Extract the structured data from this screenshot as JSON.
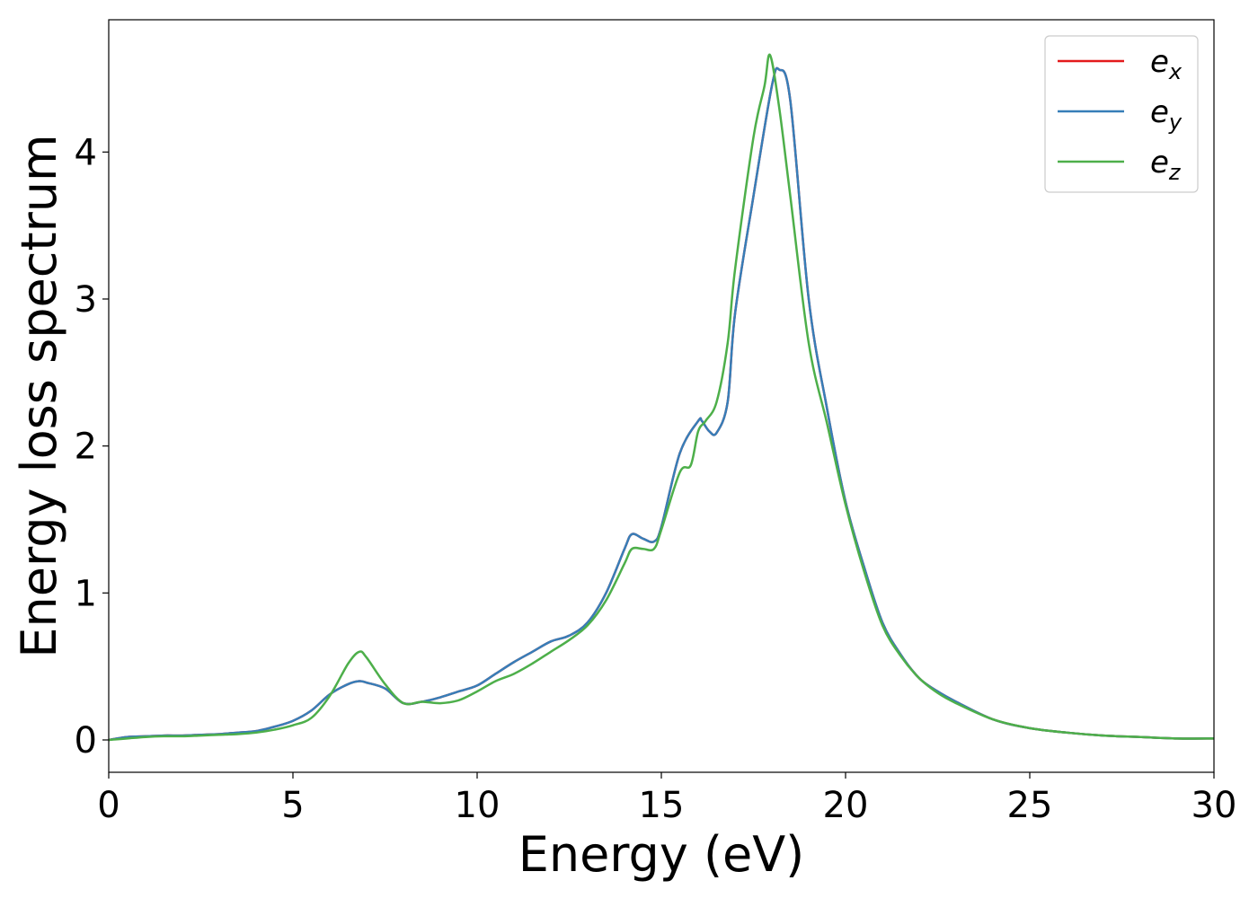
{
  "chart_data": {
    "type": "line",
    "title": "",
    "xlabel": "Energy (eV)",
    "ylabel": "Energy loss spectrum",
    "xlim": [
      0,
      30
    ],
    "ylim": [
      -0.22,
      4.9
    ],
    "xticks": [
      0,
      5,
      10,
      15,
      20,
      25,
      30
    ],
    "yticks": [
      0,
      1,
      2,
      3,
      4
    ],
    "grid": false,
    "legend_position": "top-right",
    "series": [
      {
        "name": "e_x",
        "label_base": "e",
        "label_sub": "x",
        "color": "#e41a1c",
        "x": [
          0,
          0.5,
          1,
          1.5,
          2,
          2.5,
          3,
          3.5,
          4,
          4.5,
          5,
          5.5,
          6,
          6.5,
          6.8,
          7,
          7.5,
          8,
          8.5,
          9,
          9.5,
          10,
          10.5,
          11,
          11.5,
          12,
          12.5,
          13,
          13.5,
          14,
          14.2,
          14.5,
          14.8,
          15,
          15.5,
          16,
          16.1,
          16.3,
          16.5,
          16.8,
          17,
          17.5,
          18,
          18.2,
          18.5,
          19,
          19.5,
          20,
          20.5,
          21,
          21.5,
          22,
          22.5,
          23,
          24,
          25,
          26,
          27,
          28,
          29,
          30
        ],
        "values": [
          0,
          0.02,
          0.025,
          0.03,
          0.03,
          0.035,
          0.04,
          0.05,
          0.06,
          0.09,
          0.13,
          0.2,
          0.31,
          0.38,
          0.4,
          0.39,
          0.35,
          0.25,
          0.26,
          0.29,
          0.33,
          0.37,
          0.45,
          0.53,
          0.6,
          0.67,
          0.71,
          0.8,
          1.0,
          1.3,
          1.4,
          1.37,
          1.35,
          1.45,
          1.95,
          2.17,
          2.17,
          2.1,
          2.09,
          2.3,
          2.9,
          3.7,
          4.45,
          4.56,
          4.35,
          3.0,
          2.25,
          1.62,
          1.18,
          0.8,
          0.58,
          0.42,
          0.33,
          0.26,
          0.14,
          0.08,
          0.05,
          0.03,
          0.02,
          0.01,
          0.01
        ]
      },
      {
        "name": "e_y",
        "label_base": "e",
        "label_sub": "y",
        "color": "#377eb8",
        "x": [
          0,
          0.5,
          1,
          1.5,
          2,
          2.5,
          3,
          3.5,
          4,
          4.5,
          5,
          5.5,
          6,
          6.5,
          6.8,
          7,
          7.5,
          8,
          8.5,
          9,
          9.5,
          10,
          10.5,
          11,
          11.5,
          12,
          12.5,
          13,
          13.5,
          14,
          14.2,
          14.5,
          14.8,
          15,
          15.5,
          16,
          16.1,
          16.3,
          16.5,
          16.8,
          17,
          17.5,
          18,
          18.2,
          18.5,
          19,
          19.5,
          20,
          20.5,
          21,
          21.5,
          22,
          22.5,
          23,
          24,
          25,
          26,
          27,
          28,
          29,
          30
        ],
        "values": [
          0,
          0.02,
          0.025,
          0.03,
          0.03,
          0.035,
          0.04,
          0.05,
          0.06,
          0.09,
          0.13,
          0.2,
          0.31,
          0.38,
          0.4,
          0.39,
          0.35,
          0.25,
          0.26,
          0.29,
          0.33,
          0.37,
          0.45,
          0.53,
          0.6,
          0.67,
          0.71,
          0.8,
          1.0,
          1.3,
          1.4,
          1.37,
          1.35,
          1.45,
          1.95,
          2.17,
          2.17,
          2.1,
          2.09,
          2.3,
          2.9,
          3.7,
          4.45,
          4.56,
          4.35,
          3.0,
          2.25,
          1.62,
          1.18,
          0.8,
          0.58,
          0.42,
          0.33,
          0.26,
          0.14,
          0.08,
          0.05,
          0.03,
          0.02,
          0.01,
          0.01
        ]
      },
      {
        "name": "e_z",
        "label_base": "e",
        "label_sub": "z",
        "color": "#4daf4a",
        "x": [
          0,
          0.5,
          1,
          1.5,
          2,
          2.5,
          3,
          3.5,
          4,
          4.5,
          5,
          5.5,
          6,
          6.5,
          6.8,
          7,
          7.5,
          8,
          8.5,
          9,
          9.5,
          10,
          10.5,
          11,
          11.5,
          12,
          12.5,
          13,
          13.5,
          14,
          14.2,
          14.5,
          14.8,
          15,
          15.5,
          15.8,
          16,
          16.2,
          16.5,
          16.8,
          17,
          17.5,
          17.8,
          17.95,
          18.2,
          18.5,
          19,
          19.5,
          20,
          20.5,
          21,
          21.5,
          22,
          22.5,
          23,
          24,
          25,
          26,
          27,
          28,
          29,
          30
        ],
        "values": [
          0,
          0.01,
          0.02,
          0.025,
          0.025,
          0.03,
          0.035,
          0.04,
          0.05,
          0.07,
          0.1,
          0.15,
          0.3,
          0.52,
          0.6,
          0.56,
          0.38,
          0.25,
          0.26,
          0.25,
          0.27,
          0.33,
          0.4,
          0.45,
          0.52,
          0.6,
          0.68,
          0.78,
          0.95,
          1.2,
          1.3,
          1.3,
          1.3,
          1.43,
          1.82,
          1.87,
          2.1,
          2.17,
          2.3,
          2.7,
          3.2,
          4.1,
          4.45,
          4.66,
          4.3,
          3.7,
          2.7,
          2.15,
          1.6,
          1.15,
          0.78,
          0.57,
          0.42,
          0.32,
          0.25,
          0.14,
          0.08,
          0.05,
          0.03,
          0.02,
          0.01,
          0.01
        ]
      }
    ]
  }
}
